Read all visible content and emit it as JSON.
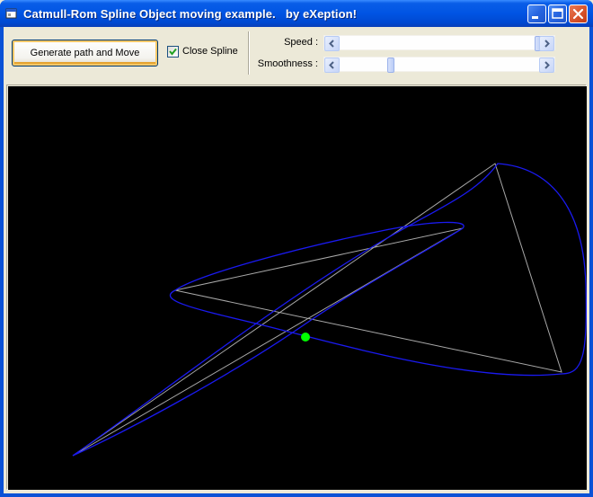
{
  "window": {
    "title": "Catmull-Rom Spline Object moving example.   by eXeption!",
    "icon": "app-icon",
    "controls": [
      "minimize-icon",
      "maximize-icon",
      "close-icon"
    ]
  },
  "toolbar": {
    "generate_label": "Generate path and Move",
    "close_spline_label": "Close Spline",
    "close_spline_checked": true,
    "speed_label": "Speed :",
    "speed_value": 1.0,
    "smoothness_label": "Smoothness :",
    "smoothness_value": 0.28
  },
  "scene": {
    "background": "#000000",
    "spline_color": "#1010ee",
    "control_line_color": "#a8a8a8",
    "object_color": "#00ff00"
  }
}
